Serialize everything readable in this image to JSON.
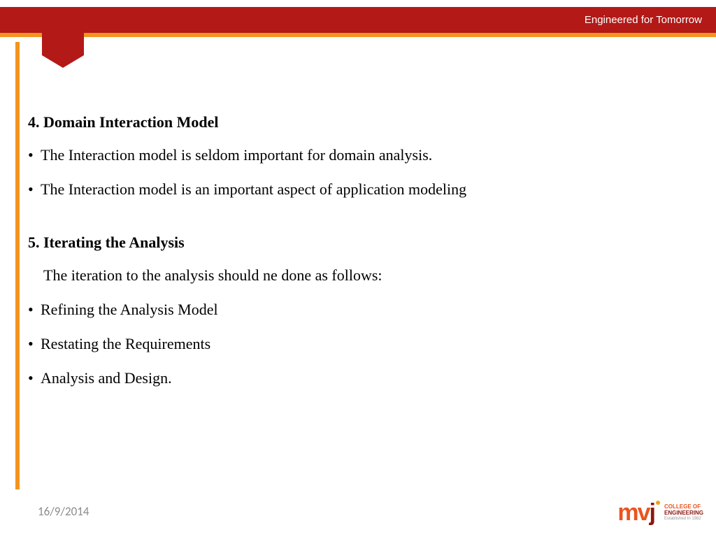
{
  "header": {
    "tagline": "Engineered for Tomorrow",
    "red_color": "#b21917",
    "orange_color": "#f3941e"
  },
  "content": {
    "section4": {
      "heading": "4. Domain Interaction Model",
      "bullets": [
        "The Interaction model is seldom important for domain analysis.",
        "The Interaction model is an important aspect of application modeling"
      ]
    },
    "section5": {
      "heading": "5. Iterating the Analysis",
      "intro": "The iteration to the analysis should ne done as follows:",
      "bullets": [
        "Refining the Analysis Model",
        "Restating the Requirements",
        "Analysis and Design."
      ]
    }
  },
  "footer": {
    "date": "16/9/2014"
  },
  "logo": {
    "line1": "COLLEGE OF",
    "line2": "ENGINEERING",
    "line3": "Established In 1982"
  }
}
